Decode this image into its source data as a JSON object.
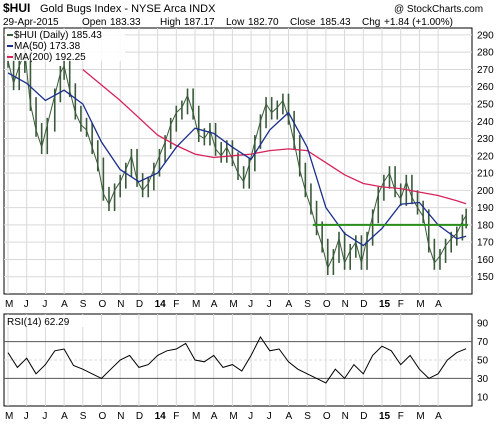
{
  "chart_data": {
    "type": "candlestick",
    "symbol": "$HUI",
    "title": "Gold Bugs Index - NYSE Arca INDX",
    "watermark": "@ StockCharts.com",
    "date": "29-Apr-2015",
    "quote": {
      "open_label": "Open",
      "open": "183.33",
      "high_label": "High",
      "high": "187.17",
      "low_label": "Low",
      "low": "182.70",
      "close_label": "Close",
      "close": "185.43",
      "chg_label": "Chg",
      "chg": "+1.84 (+1.00%)"
    },
    "legend": {
      "price": "$HUI (Daily) 185.43",
      "ma50": "MA(50) 173.38",
      "ma200": "MA(200) 192.25"
    },
    "colors": {
      "price": "#3a5a3a",
      "ma50": "#1a2e8c",
      "ma200": "#d6245a",
      "support": "#2a8c1a",
      "rsi": "#000000",
      "grid": "#d9d9d9",
      "band": "#bbbbbb"
    },
    "x_months": [
      "M",
      "J",
      "J",
      "A",
      "S",
      "O",
      "N",
      "D",
      "14",
      "F",
      "M",
      "A",
      "M",
      "J",
      "J",
      "A",
      "S",
      "O",
      "N",
      "D",
      "15",
      "F",
      "M",
      "A"
    ],
    "bold_months": [
      "14",
      "15"
    ],
    "ylim": [
      140,
      294
    ],
    "yticks": [
      150,
      160,
      170,
      180,
      190,
      200,
      210,
      220,
      230,
      240,
      250,
      260,
      270,
      280,
      290
    ],
    "support_level": 180,
    "close_series": [
      {
        "m": 0.0,
        "v": 275
      },
      {
        "m": 0.3,
        "v": 262
      },
      {
        "m": 0.6,
        "v": 272
      },
      {
        "m": 0.9,
        "v": 280
      },
      {
        "m": 1.2,
        "v": 250
      },
      {
        "m": 1.5,
        "v": 235
      },
      {
        "m": 1.8,
        "v": 225
      },
      {
        "m": 2.1,
        "v": 238
      },
      {
        "m": 2.5,
        "v": 255
      },
      {
        "m": 2.8,
        "v": 268
      },
      {
        "m": 3.0,
        "v": 272
      },
      {
        "m": 3.3,
        "v": 258
      },
      {
        "m": 3.6,
        "v": 245
      },
      {
        "m": 3.9,
        "v": 238
      },
      {
        "m": 4.2,
        "v": 235
      },
      {
        "m": 4.5,
        "v": 225
      },
      {
        "m": 4.8,
        "v": 215
      },
      {
        "m": 5.1,
        "v": 198
      },
      {
        "m": 5.4,
        "v": 192
      },
      {
        "m": 5.7,
        "v": 200
      },
      {
        "m": 6.0,
        "v": 205
      },
      {
        "m": 6.3,
        "v": 212
      },
      {
        "m": 6.6,
        "v": 220
      },
      {
        "m": 6.9,
        "v": 206
      },
      {
        "m": 7.2,
        "v": 200
      },
      {
        "m": 7.5,
        "v": 204
      },
      {
        "m": 7.8,
        "v": 212
      },
      {
        "m": 8.1,
        "v": 220
      },
      {
        "m": 8.4,
        "v": 228
      },
      {
        "m": 8.7,
        "v": 238
      },
      {
        "m": 9.0,
        "v": 245
      },
      {
        "m": 9.3,
        "v": 248
      },
      {
        "m": 9.6,
        "v": 255
      },
      {
        "m": 9.9,
        "v": 245
      },
      {
        "m": 10.2,
        "v": 232
      },
      {
        "m": 10.5,
        "v": 230
      },
      {
        "m": 10.8,
        "v": 235
      },
      {
        "m": 11.1,
        "v": 224
      },
      {
        "m": 11.4,
        "v": 220
      },
      {
        "m": 11.7,
        "v": 225
      },
      {
        "m": 12.0,
        "v": 218
      },
      {
        "m": 12.3,
        "v": 210
      },
      {
        "m": 12.6,
        "v": 205
      },
      {
        "m": 12.9,
        "v": 215
      },
      {
        "m": 13.2,
        "v": 228
      },
      {
        "m": 13.5,
        "v": 240
      },
      {
        "m": 13.8,
        "v": 250
      },
      {
        "m": 14.1,
        "v": 245
      },
      {
        "m": 14.4,
        "v": 248
      },
      {
        "m": 14.7,
        "v": 252
      },
      {
        "m": 15.0,
        "v": 242
      },
      {
        "m": 15.3,
        "v": 228
      },
      {
        "m": 15.6,
        "v": 212
      },
      {
        "m": 15.9,
        "v": 200
      },
      {
        "m": 16.2,
        "v": 190
      },
      {
        "m": 16.5,
        "v": 178
      },
      {
        "m": 16.8,
        "v": 168
      },
      {
        "m": 17.1,
        "v": 155
      },
      {
        "m": 17.4,
        "v": 162
      },
      {
        "m": 17.7,
        "v": 172
      },
      {
        "m": 18.0,
        "v": 158
      },
      {
        "m": 18.3,
        "v": 165
      },
      {
        "m": 18.6,
        "v": 170
      },
      {
        "m": 18.9,
        "v": 158
      },
      {
        "m": 19.2,
        "v": 172
      },
      {
        "m": 19.5,
        "v": 185
      },
      {
        "m": 19.8,
        "v": 198
      },
      {
        "m": 20.1,
        "v": 205
      },
      {
        "m": 20.4,
        "v": 210
      },
      {
        "m": 20.7,
        "v": 200
      },
      {
        "m": 21.0,
        "v": 195
      },
      {
        "m": 21.3,
        "v": 205
      },
      {
        "m": 21.6,
        "v": 196
      },
      {
        "m": 21.9,
        "v": 190
      },
      {
        "m": 22.2,
        "v": 185
      },
      {
        "m": 22.5,
        "v": 168
      },
      {
        "m": 22.8,
        "v": 158
      },
      {
        "m": 23.1,
        "v": 162
      },
      {
        "m": 23.4,
        "v": 168
      },
      {
        "m": 23.7,
        "v": 172
      },
      {
        "m": 24.0,
        "v": 175
      },
      {
        "m": 24.3,
        "v": 182
      },
      {
        "m": 24.5,
        "v": 185.43
      }
    ],
    "ma50_series": [
      {
        "m": 0.0,
        "v": 268
      },
      {
        "m": 1.0,
        "v": 262
      },
      {
        "m": 2.0,
        "v": 252
      },
      {
        "m": 3.0,
        "v": 258
      },
      {
        "m": 4.0,
        "v": 250
      },
      {
        "m": 5.0,
        "v": 228
      },
      {
        "m": 6.0,
        "v": 212
      },
      {
        "m": 7.0,
        "v": 205
      },
      {
        "m": 8.0,
        "v": 210
      },
      {
        "m": 9.0,
        "v": 225
      },
      {
        "m": 10.0,
        "v": 236
      },
      {
        "m": 11.0,
        "v": 233
      },
      {
        "m": 12.0,
        "v": 225
      },
      {
        "m": 13.0,
        "v": 218
      },
      {
        "m": 14.0,
        "v": 235
      },
      {
        "m": 15.0,
        "v": 245
      },
      {
        "m": 16.0,
        "v": 225
      },
      {
        "m": 17.0,
        "v": 190
      },
      {
        "m": 18.0,
        "v": 175
      },
      {
        "m": 19.0,
        "v": 168
      },
      {
        "m": 20.0,
        "v": 178
      },
      {
        "m": 21.0,
        "v": 192
      },
      {
        "m": 22.0,
        "v": 193
      },
      {
        "m": 23.0,
        "v": 180
      },
      {
        "m": 24.0,
        "v": 172
      },
      {
        "m": 24.5,
        "v": 173.38
      }
    ],
    "ma200_series": [
      {
        "m": 4.0,
        "v": 270
      },
      {
        "m": 6.0,
        "v": 252
      },
      {
        "m": 8.0,
        "v": 232
      },
      {
        "m": 9.0,
        "v": 226
      },
      {
        "m": 10.0,
        "v": 221
      },
      {
        "m": 11.0,
        "v": 219
      },
      {
        "m": 12.0,
        "v": 220
      },
      {
        "m": 13.0,
        "v": 221
      },
      {
        "m": 14.0,
        "v": 223
      },
      {
        "m": 15.0,
        "v": 224
      },
      {
        "m": 16.0,
        "v": 223
      },
      {
        "m": 17.0,
        "v": 216
      },
      {
        "m": 18.0,
        "v": 209
      },
      {
        "m": 19.0,
        "v": 204
      },
      {
        "m": 20.0,
        "v": 202
      },
      {
        "m": 21.0,
        "v": 201
      },
      {
        "m": 22.0,
        "v": 199
      },
      {
        "m": 23.0,
        "v": 197
      },
      {
        "m": 24.0,
        "v": 194
      },
      {
        "m": 24.5,
        "v": 192.25
      }
    ],
    "rsi": {
      "label": "RSI(14) 62.29",
      "ylim": [
        0,
        100
      ],
      "yticks": [
        10,
        30,
        50,
        70,
        90
      ],
      "bands": [
        30,
        70
      ],
      "series": [
        {
          "m": 0.0,
          "v": 58
        },
        {
          "m": 0.5,
          "v": 42
        },
        {
          "m": 1.0,
          "v": 52
        },
        {
          "m": 1.5,
          "v": 35
        },
        {
          "m": 2.0,
          "v": 45
        },
        {
          "m": 2.5,
          "v": 60
        },
        {
          "m": 3.0,
          "v": 62
        },
        {
          "m": 3.5,
          "v": 44
        },
        {
          "m": 4.0,
          "v": 40
        },
        {
          "m": 4.5,
          "v": 35
        },
        {
          "m": 5.0,
          "v": 30
        },
        {
          "m": 5.5,
          "v": 40
        },
        {
          "m": 6.0,
          "v": 50
        },
        {
          "m": 6.5,
          "v": 55
        },
        {
          "m": 7.0,
          "v": 42
        },
        {
          "m": 7.5,
          "v": 45
        },
        {
          "m": 8.0,
          "v": 55
        },
        {
          "m": 8.5,
          "v": 60
        },
        {
          "m": 9.0,
          "v": 62
        },
        {
          "m": 9.5,
          "v": 68
        },
        {
          "m": 10.0,
          "v": 50
        },
        {
          "m": 10.5,
          "v": 48
        },
        {
          "m": 11.0,
          "v": 55
        },
        {
          "m": 11.5,
          "v": 42
        },
        {
          "m": 12.0,
          "v": 45
        },
        {
          "m": 12.5,
          "v": 38
        },
        {
          "m": 13.0,
          "v": 55
        },
        {
          "m": 13.5,
          "v": 75
        },
        {
          "m": 14.0,
          "v": 60
        },
        {
          "m": 14.5,
          "v": 62
        },
        {
          "m": 15.0,
          "v": 48
        },
        {
          "m": 15.5,
          "v": 40
        },
        {
          "m": 16.0,
          "v": 35
        },
        {
          "m": 16.5,
          "v": 30
        },
        {
          "m": 17.0,
          "v": 25
        },
        {
          "m": 17.5,
          "v": 40
        },
        {
          "m": 18.0,
          "v": 30
        },
        {
          "m": 18.5,
          "v": 45
        },
        {
          "m": 19.0,
          "v": 35
        },
        {
          "m": 19.5,
          "v": 55
        },
        {
          "m": 20.0,
          "v": 65
        },
        {
          "m": 20.5,
          "v": 60
        },
        {
          "m": 21.0,
          "v": 45
        },
        {
          "m": 21.5,
          "v": 55
        },
        {
          "m": 22.0,
          "v": 40
        },
        {
          "m": 22.5,
          "v": 30
        },
        {
          "m": 23.0,
          "v": 35
        },
        {
          "m": 23.5,
          "v": 50
        },
        {
          "m": 24.0,
          "v": 58
        },
        {
          "m": 24.5,
          "v": 62.29
        }
      ]
    }
  }
}
